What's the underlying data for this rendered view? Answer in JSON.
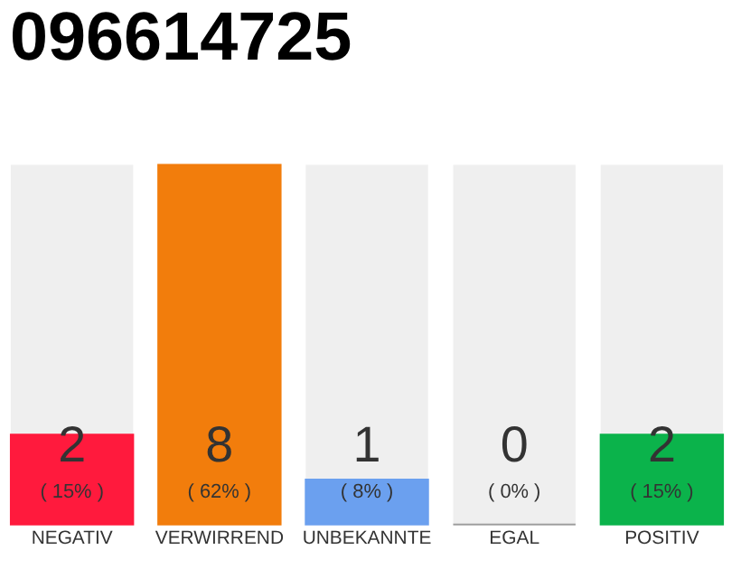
{
  "chart_data": {
    "type": "bar",
    "title": "096614725",
    "categories": [
      "NEGATIV",
      "VERWIRREND",
      "UNBEKANNTE",
      "EGAL",
      "POSITIV"
    ],
    "values": [
      2,
      8,
      1,
      0,
      2
    ],
    "colors": [
      "#ff1a3d",
      "#f27d0c",
      "#6ba0ef",
      "#9e9e9e",
      "#0bb34b"
    ],
    "ylim": [
      0,
      8
    ],
    "data_labels": true,
    "tick_labels": "x",
    "grid": false,
    "annotations": [
      "( 15% )",
      "( 62% )",
      "( 8% )",
      "( 0% )",
      "( 15% )"
    ]
  }
}
